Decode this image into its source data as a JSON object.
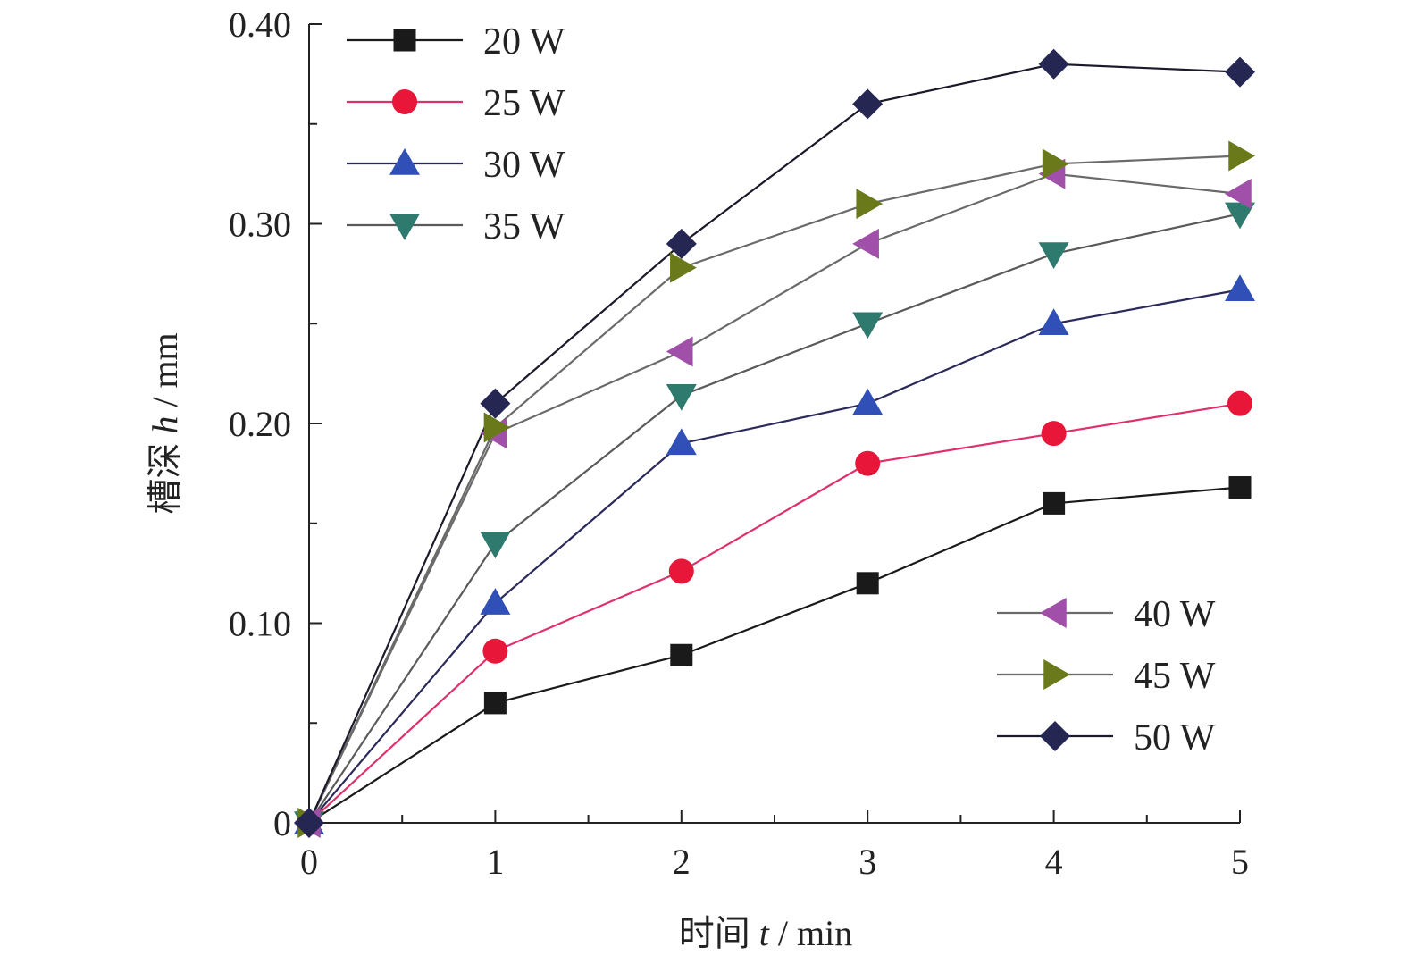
{
  "chart_data": {
    "type": "line",
    "xlabel_prefix": "时间 ",
    "xlabel_var": "t",
    "xlabel_unit": " / min",
    "ylabel_prefix": "槽深 ",
    "ylabel_var": "h",
    "ylabel_unit": " / mm",
    "xlim": [
      0,
      5
    ],
    "ylim": [
      0,
      0.4
    ],
    "x_ticks": [
      "0",
      "1",
      "2",
      "3",
      "4",
      "5"
    ],
    "y_ticks": [
      "0",
      "0.10",
      "0.20",
      "0.30",
      "0.40"
    ],
    "x": [
      0,
      1,
      2,
      3,
      4,
      5
    ],
    "grid": false,
    "legend_placement": "top-left and bottom-right",
    "series": [
      {
        "name": "20 W",
        "values": [
          0,
          0.06,
          0.084,
          0.12,
          0.16,
          0.168
        ],
        "color": "#1a1a1a",
        "marker": "square",
        "line_color": "#1a1a1a"
      },
      {
        "name": "25 W",
        "values": [
          0,
          0.086,
          0.126,
          0.18,
          0.195,
          0.21
        ],
        "color": "#e8173a",
        "marker": "circle",
        "line_color": "#e0306a"
      },
      {
        "name": "30 W",
        "values": [
          0,
          0.11,
          0.19,
          0.21,
          0.25,
          0.267
        ],
        "color": "#3050b8",
        "marker": "triangle-up",
        "line_color": "#2a2a5a"
      },
      {
        "name": "35 W",
        "values": [
          0,
          0.14,
          0.214,
          0.25,
          0.285,
          0.305
        ],
        "color": "#2e7a6e",
        "marker": "triangle-down",
        "line_color": "#5a5a5a"
      },
      {
        "name": "40 W",
        "values": [
          0,
          0.195,
          0.236,
          0.29,
          0.325,
          0.315
        ],
        "color": "#a050a8",
        "marker": "triangle-left",
        "line_color": "#6a6a6a"
      },
      {
        "name": "45 W",
        "values": [
          0,
          0.198,
          0.278,
          0.31,
          0.33,
          0.334
        ],
        "color": "#6a7a1a",
        "marker": "triangle-right",
        "line_color": "#6a6a6a"
      },
      {
        "name": "50 W",
        "values": [
          0,
          0.21,
          0.29,
          0.36,
          0.38,
          0.376
        ],
        "color": "#262652",
        "marker": "diamond",
        "line_color": "#1a1a2a"
      }
    ]
  }
}
